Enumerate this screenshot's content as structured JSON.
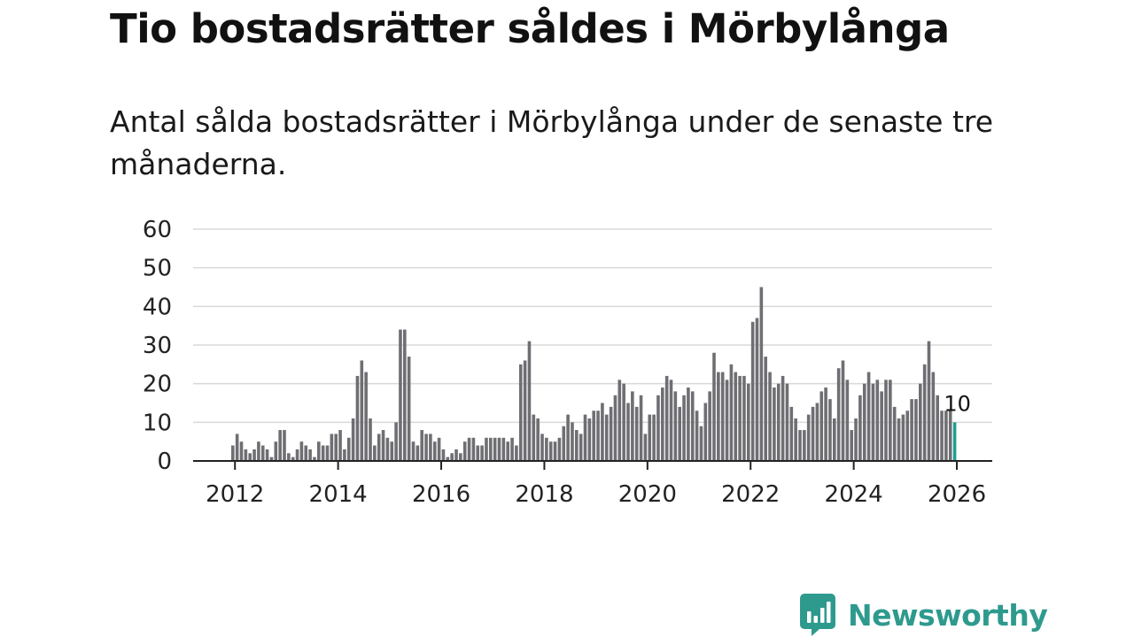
{
  "title": "Tio bostadsrätter såldes i Mörbylånga",
  "subtitle": "Antal sålda bostadsrätter i Mörbylånga under de senaste tre månaderna.",
  "brand": {
    "name": "Newsworthy",
    "icon": "newsworthy-logo-icon"
  },
  "colors": {
    "bar": "#6f6e73",
    "highlight": "#1f9d92",
    "grid": "#d9d9d9",
    "axis": "#222222",
    "brand": "#2e9a8e"
  },
  "chart_data": {
    "type": "bar",
    "title": "Tio bostadsrätter såldes i Mörbylånga",
    "subtitle": "Antal sålda bostadsrätter i Mörbylånga under de senaste tre månaderna.",
    "xlabel": "",
    "ylabel": "",
    "ylim": [
      0,
      60
    ],
    "yticks": [
      0,
      10,
      20,
      30,
      40,
      50,
      60
    ],
    "xticks": [
      "2012",
      "2014",
      "2016",
      "2018",
      "2020",
      "2022",
      "2024",
      "2026"
    ],
    "grid": true,
    "legend": "none",
    "series": [
      {
        "name": "Sålda bostadsrätter",
        "start": "2011-12",
        "values": [
          4,
          7,
          5,
          3,
          2,
          3,
          5,
          4,
          3,
          1,
          5,
          8,
          8,
          2,
          1,
          3,
          5,
          4,
          3,
          1,
          5,
          4,
          4,
          7,
          7,
          8,
          3,
          6,
          11,
          22,
          26,
          23,
          11,
          4,
          7,
          8,
          6,
          5,
          10,
          34,
          34,
          27,
          5,
          4,
          8,
          7,
          7,
          5,
          6,
          3,
          1,
          2,
          3,
          2,
          5,
          6,
          6,
          4,
          4,
          6,
          6,
          6,
          6,
          6,
          5,
          6,
          4,
          25,
          26,
          31,
          12,
          11,
          7,
          6,
          5,
          5,
          6,
          9,
          12,
          10,
          8,
          7,
          12,
          11,
          13,
          13,
          15,
          12,
          14,
          17,
          21,
          20,
          15,
          18,
          14,
          17,
          7,
          12,
          12,
          17,
          19,
          22,
          21,
          18,
          14,
          17,
          19,
          18,
          13,
          9,
          15,
          18,
          28,
          23,
          23,
          21,
          25,
          23,
          22,
          22,
          20,
          36,
          37,
          45,
          27,
          23,
          19,
          20,
          22,
          20,
          14,
          11,
          8,
          8,
          12,
          14,
          15,
          18,
          19,
          16,
          11,
          24,
          26,
          21,
          8,
          11,
          17,
          20,
          23,
          20,
          21,
          18,
          21,
          21,
          14,
          11,
          12,
          13,
          16,
          16,
          20,
          25,
          31,
          23,
          17,
          13,
          13,
          13,
          10
        ]
      }
    ],
    "annotations": [
      {
        "label": "10",
        "target": "last"
      }
    ]
  }
}
